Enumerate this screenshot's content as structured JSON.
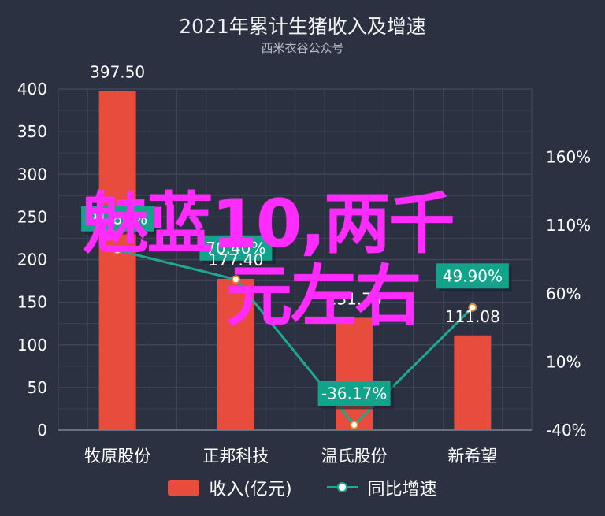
{
  "colors": {
    "background": "#2b3141",
    "bar": "#e74c3c",
    "line": "#1fa88f",
    "label_box": "#12a48a",
    "overlay_text": "#ff2bff",
    "grid": "#3e4557"
  },
  "watermark": {
    "line1": "魅蓝10,两千",
    "line2": "元左右"
  },
  "chart_data": {
    "type": "bar",
    "title": "2021年累计生猪收入及增速",
    "subtitle": "西米衣谷公众号",
    "categories": [
      "牧原股份",
      "正邦科技",
      "温氏股份",
      "新希望"
    ],
    "series": [
      {
        "name": "收入(亿元)",
        "type": "bar",
        "axis": "left",
        "values": [
          397.5,
          177.4,
          131.76,
          111.08
        ],
        "labels": [
          "397.50",
          "177.40",
          "131.76",
          "111.08"
        ]
      },
      {
        "name": "同比增速",
        "type": "line",
        "axis": "right",
        "values": [
          91.8,
          70.4,
          -36.17,
          49.9
        ],
        "labels": [
          "91.80%",
          "70.40%",
          "-36.17%",
          "49.90%"
        ]
      }
    ],
    "left_axis": {
      "ylim": [
        0,
        400
      ],
      "ticks": [
        "0",
        "50",
        "100",
        "150",
        "200",
        "250",
        "300",
        "350",
        "400"
      ]
    },
    "right_axis": {
      "ylim": [
        -40,
        210
      ],
      "ticks": [
        "-40%",
        "10%",
        "60%",
        "110%",
        "160%"
      ]
    },
    "grid": true,
    "legend": "bottom-center"
  }
}
